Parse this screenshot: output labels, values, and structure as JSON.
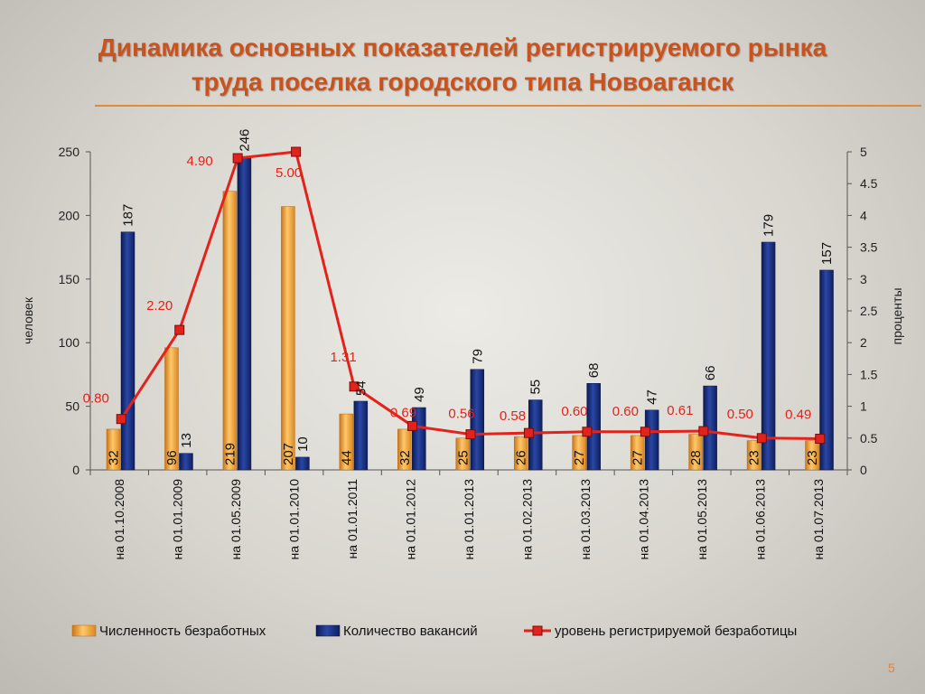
{
  "title": {
    "line1": "Динамика основных показателей регистрируемого рынка",
    "line2": "труда поселка городского типа Новоаганск"
  },
  "page_number": "5",
  "colors": {
    "title": "#c8531e",
    "bar_unemployed": "#f0a030",
    "bar_vacancies": "#1c2f7a",
    "line_rate": "#e3231b"
  },
  "chart_data": {
    "type": "bar",
    "categories": [
      "на 01.10.2008",
      "на 01.01.2009",
      "на 01.05.2009",
      "на 01.01.2010",
      "на 01.01.2011",
      "на 01.01.2012",
      "на 01.01.2013",
      "на 01.02.2013",
      "на 01.03.2013",
      "на 01.04.2013",
      "на 01.05.2013",
      "на 01.06.2013",
      "на 01.07.2013"
    ],
    "series": [
      {
        "name": "Численность безработных",
        "axis": "left",
        "type": "bar",
        "values": [
          32,
          96,
          219,
          207,
          44,
          32,
          25,
          26,
          27,
          27,
          28,
          23,
          23
        ]
      },
      {
        "name": "Количество вакансий",
        "axis": "left",
        "type": "bar",
        "values": [
          187,
          13,
          246,
          10,
          54,
          49,
          79,
          55,
          68,
          47,
          66,
          179,
          157
        ]
      },
      {
        "name": "уровень регистрируемой безработицы",
        "axis": "right",
        "type": "line",
        "values": [
          0.8,
          2.2,
          4.9,
          5.0,
          1.31,
          0.69,
          0.56,
          0.58,
          0.6,
          0.6,
          0.61,
          0.5,
          0.49
        ],
        "labels": [
          "0.80",
          "2.20",
          "4.90",
          "5.00",
          "1.31",
          "0.69",
          "0.56",
          "0.58",
          "0.60",
          "0.60",
          "0.61",
          "0.50",
          "0.49"
        ]
      }
    ],
    "ylabel": "человек",
    "y2label": "проценты",
    "ylim": [
      0,
      250
    ],
    "y2lim": [
      0,
      5
    ],
    "yticks": [
      "0",
      "50",
      "100",
      "150",
      "200",
      "250"
    ],
    "y2ticks": [
      "0",
      "0.5",
      "1",
      "1.5",
      "2",
      "2.5",
      "3",
      "3.5",
      "4",
      "4.5",
      "5"
    ],
    "legend": "bottom",
    "grid": false
  }
}
